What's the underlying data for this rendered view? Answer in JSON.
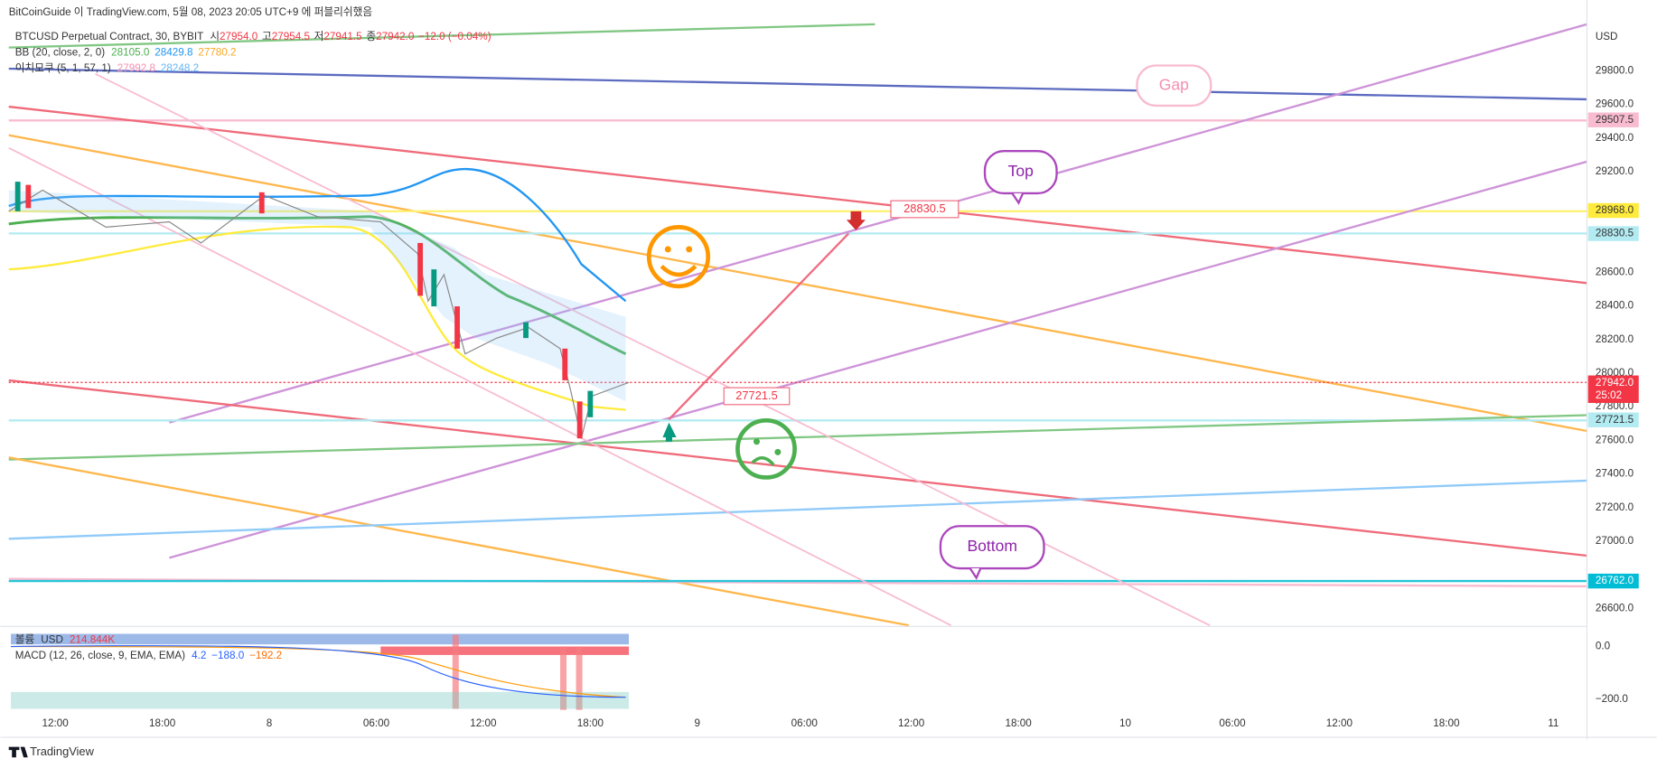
{
  "header": {
    "publisher": "BitCoinGuide 이 TradingView.com, 5월 08, 2023 20:05 UTC+9 에 퍼블리쉬했음"
  },
  "legend": {
    "symbol": "BTCUSD Perpetual Contract, 30, BYBIT",
    "ohlc": [
      {
        "label": "시",
        "value": "27954.0"
      },
      {
        "label": "고",
        "value": "27954.5"
      },
      {
        "label": "저",
        "value": "27941.5"
      },
      {
        "label": "종",
        "value": "27942.0"
      }
    ],
    "change": "−12.0 (−0.04%)",
    "bb": {
      "name": "BB (20, close, 2, 0)",
      "values": [
        "28105.0",
        "28429.8",
        "27780.2"
      ]
    },
    "ichimoku": {
      "name": "이치모쿠 (5, 1, 57, 1)",
      "values": [
        "27992.8",
        "28248.2"
      ]
    },
    "volume": {
      "name": "볼륨",
      "unit": "USD",
      "value": "214.844K"
    },
    "macd": {
      "name": "MACD (12, 26, close, 9, EMA, EMA)",
      "values": [
        "4.2",
        "−188.0",
        "−192.2"
      ]
    }
  },
  "price_axis": {
    "unit": "USD",
    "ticks": [
      "29800.0",
      "29600.0",
      "29400.0",
      "29200.0",
      "28600.0",
      "28400.0",
      "28200.0",
      "28000.0",
      "27800.0",
      "27600.0",
      "27400.0",
      "27200.0",
      "27000.0",
      "26600.0"
    ],
    "badges": [
      {
        "text": "29507.5",
        "color": "#f8bbd0",
        "fg": "#333"
      },
      {
        "text": "28968.0",
        "color": "#ffeb3b",
        "fg": "#333"
      },
      {
        "text": "28830.5",
        "color": "#b2ebf2",
        "fg": "#333"
      },
      {
        "text": "27942.0",
        "color": "#f23645",
        "fg": "#fff",
        "extra": "25:02"
      },
      {
        "text": "27721.5",
        "color": "#b2ebf2",
        "fg": "#333"
      },
      {
        "text": "26762.0",
        "color": "#00bcd4",
        "fg": "#fff"
      }
    ]
  },
  "macd_axis": {
    "ticks": [
      "0.0",
      "−200.0"
    ]
  },
  "time_axis": {
    "ticks": [
      "12:00",
      "18:00",
      "8",
      "06:00",
      "12:00",
      "18:00",
      "9",
      "06:00",
      "12:00",
      "18:00",
      "10",
      "06:00",
      "12:00",
      "18:00",
      "11"
    ]
  },
  "annotations": {
    "gap": "Gap",
    "top": "Top",
    "bottom": "Bottom",
    "target": "28830.5",
    "support": "27721.5"
  },
  "footer": {
    "brand": "TradingView"
  }
}
